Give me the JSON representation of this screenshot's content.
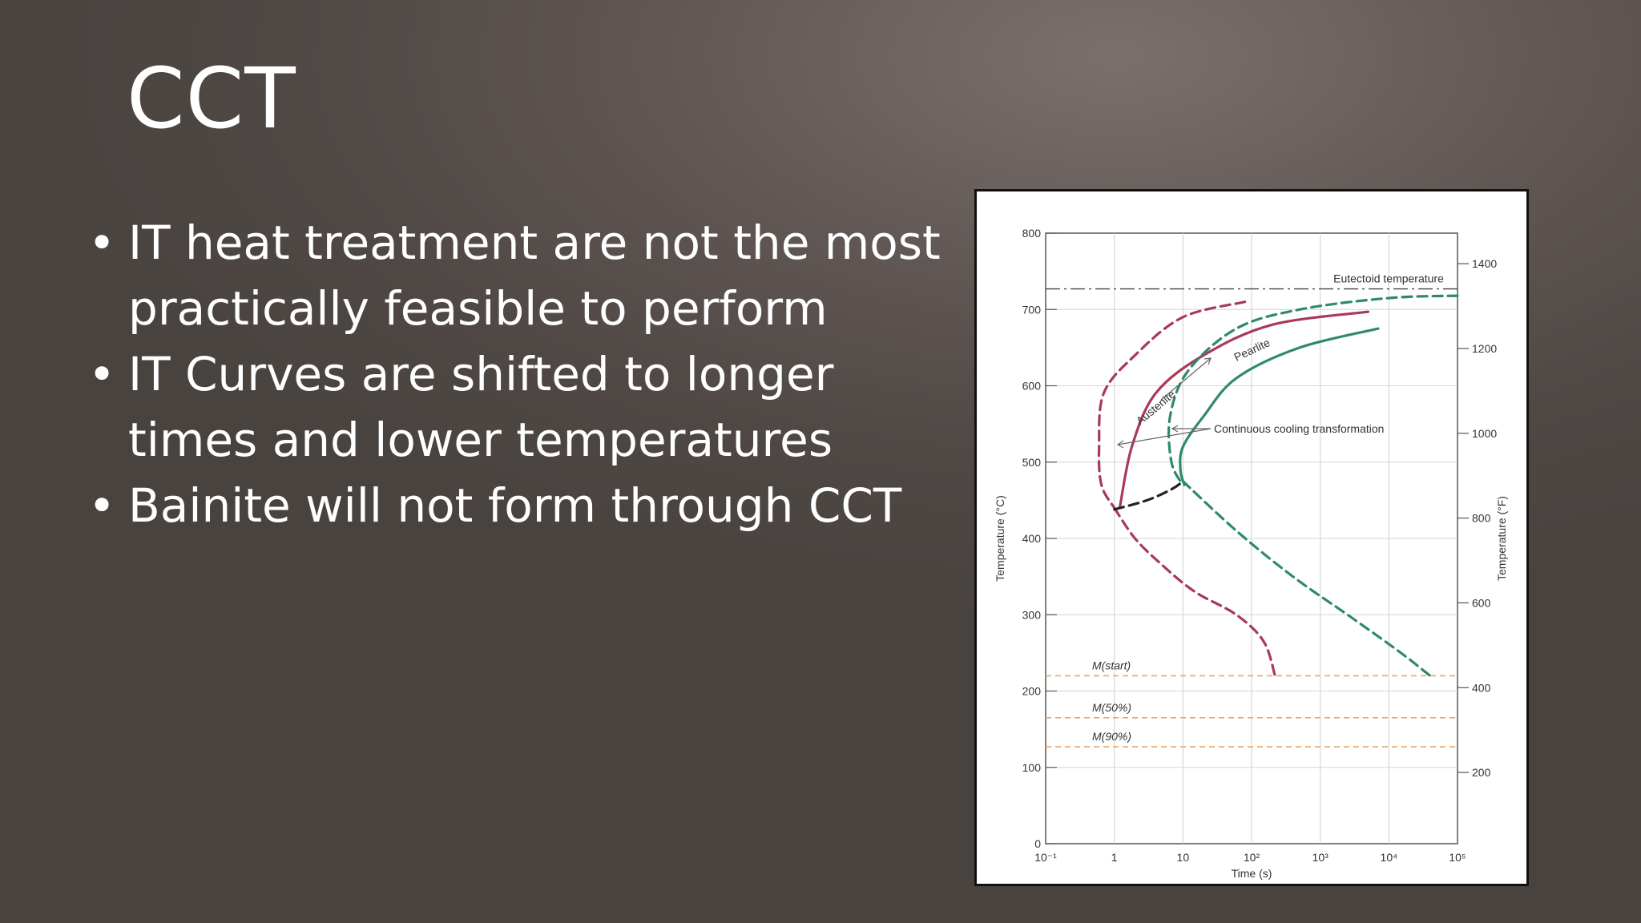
{
  "slide": {
    "title": "CCT",
    "bullets": [
      "IT heat treatment are not the most practically feasible to perform",
      "IT Curves are shifted to longer times and lower temperatures",
      "Bainite will not form through CCT"
    ]
  },
  "chart_data": {
    "type": "line",
    "title": "",
    "xlabel": "Time (s)",
    "ylabel": "Temperature (°C)",
    "y2label": "Temperature (°F)",
    "x_scale": "log",
    "xlim": [
      0.1,
      100000
    ],
    "ylim": [
      0,
      800
    ],
    "x_ticks": [
      "10⁻¹",
      "1",
      "10",
      "10²",
      "10³",
      "10⁴",
      "10⁵"
    ],
    "x_tick_values": [
      0.1,
      1,
      10,
      100,
      1000,
      10000,
      100000
    ],
    "y_ticks": [
      0,
      100,
      200,
      300,
      400,
      500,
      600,
      700,
      800
    ],
    "y2_ticks": [
      200,
      400,
      600,
      800,
      1000,
      1200,
      1400
    ],
    "grid": true,
    "colors": {
      "it_curves": "#a83a56",
      "cct_curves": "#2f8a6a",
      "martensite_lines": "#e8a86a",
      "bainite_link": "#222222",
      "eutectoid": "#444444"
    },
    "series": [
      {
        "name": "",
        "style": "it-start",
        "x": [
          80,
          10,
          2,
          0.7,
          0.6,
          0.65,
          1.0
        ],
        "y": [
          710,
          690,
          640,
          590,
          520,
          470,
          440
        ]
      },
      {
        "name": "",
        "style": "it-finish",
        "x": [
          5000,
          200,
          20,
          4,
          1.8,
          1.2
        ],
        "y": [
          697,
          680,
          640,
          590,
          520,
          440
        ]
      },
      {
        "name": "",
        "style": "it-lower",
        "x": [
          1.0,
          2.0,
          5.0,
          15,
          60,
          150,
          220
        ],
        "y": [
          440,
          400,
          365,
          330,
          300,
          265,
          220
        ]
      },
      {
        "name": "",
        "style": "cct-start",
        "x": [
          100000,
          10000,
          500,
          60,
          12,
          6.5,
          6.8,
          10
        ],
        "y": [
          718,
          715,
          700,
          675,
          620,
          560,
          500,
          470
        ]
      },
      {
        "name": "",
        "style": "cct-finish",
        "x": [
          7000,
          500,
          60,
          20,
          10,
          9.2,
          10.5
        ],
        "y": [
          675,
          650,
          610,
          560,
          520,
          490,
          470
        ]
      },
      {
        "name": "",
        "style": "cct-lower",
        "x": [
          10,
          60,
          400,
          3000,
          15000,
          40000
        ],
        "y": [
          475,
          410,
          350,
          295,
          250,
          220
        ]
      },
      {
        "name": "",
        "style": "bainite-link",
        "x": [
          1.0,
          3,
          7,
          10
        ],
        "y": [
          438,
          450,
          465,
          475
        ]
      }
    ],
    "reference_lines": [
      {
        "label": "Eutectoid temperature",
        "y": 727
      },
      {
        "label": "M(start)",
        "y": 220
      },
      {
        "label": "M(50%)",
        "y": 165
      },
      {
        "label": "M(90%)",
        "y": 127
      }
    ],
    "annotations": [
      "Austenite",
      "Pearlite",
      "Continuous cooling transformation"
    ]
  }
}
